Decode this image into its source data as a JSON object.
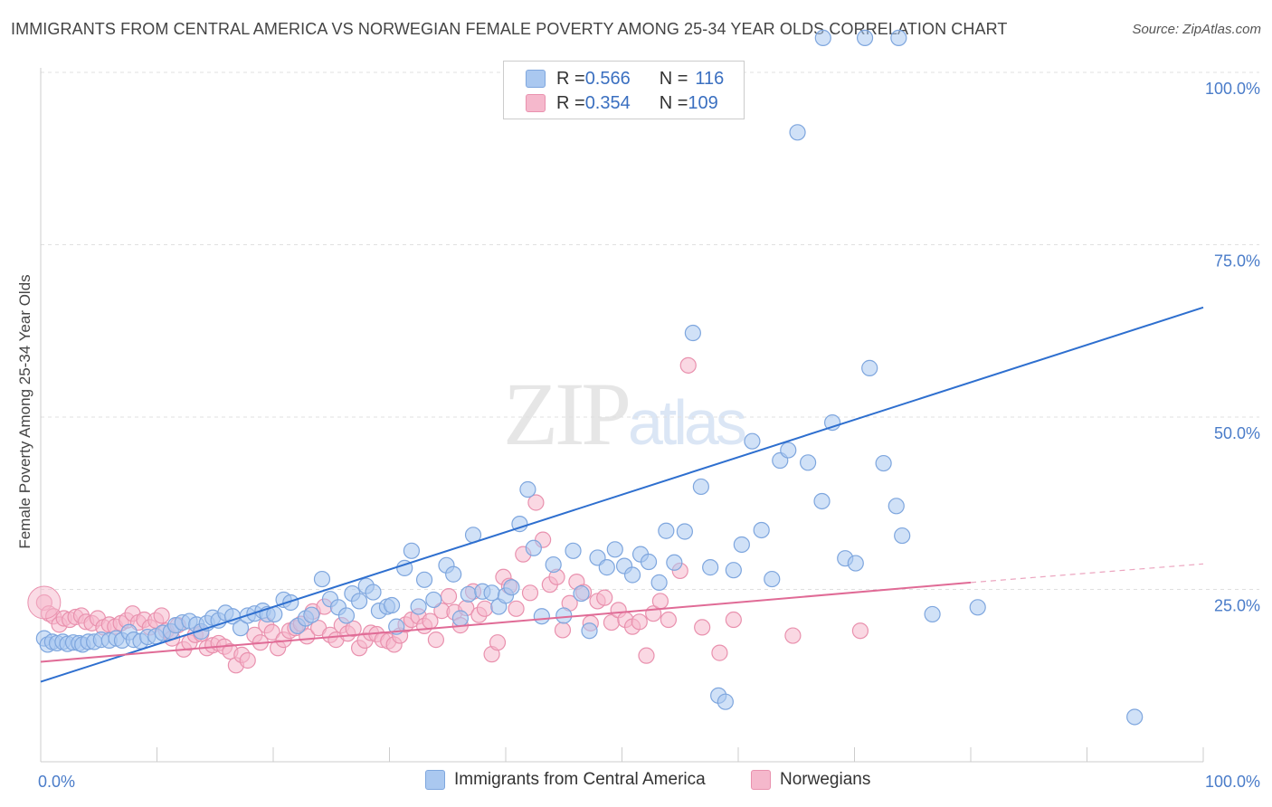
{
  "header": {
    "title": "IMMIGRANTS FROM CENTRAL AMERICA VS NORWEGIAN FEMALE POVERTY AMONG 25-34 YEAR OLDS CORRELATION CHART",
    "source": "Source: ZipAtlas.com"
  },
  "watermark": {
    "zip": "ZIP",
    "atlas": "atlas"
  },
  "legend": {
    "blue": {
      "r_label": "R = ",
      "r_value": "0.566",
      "n_label": "N = ",
      "n_value": "116"
    },
    "pink": {
      "r_label": "R = ",
      "r_value": "0.354",
      "n_label": "N = ",
      "n_value": "109"
    }
  },
  "colors": {
    "blue_fill": "#aac8f0",
    "blue_stroke": "#7ea6de",
    "blue_line": "#2e6fcf",
    "pink_fill": "#f5b8cc",
    "pink_stroke": "#e991ae",
    "pink_line": "#e06b96",
    "grid": "#e0e0e0",
    "tick_text": "#4a7cc9"
  },
  "chart_data": {
    "type": "scatter",
    "title": "IMMIGRANTS FROM CENTRAL AMERICA VS NORWEGIAN FEMALE POVERTY AMONG 25-34 YEAR OLDS CORRELATION CHART",
    "xlabel": "",
    "ylabel": "Female Poverty Among 25-34 Year Olds",
    "xlim": [
      0,
      100
    ],
    "ylim": [
      0,
      100
    ],
    "x_tick_labels": [
      "0.0%",
      "100.0%"
    ],
    "y_tick_labels": [
      "25.0%",
      "50.0%",
      "75.0%",
      "100.0%"
    ],
    "y_ticks": [
      25,
      50,
      75,
      100
    ],
    "grid": true,
    "legend_position": "top-center",
    "series": [
      {
        "name": "Immigrants from Central America",
        "color": "#aac8f0",
        "trend": {
          "x": [
            0,
            100
          ],
          "y": [
            11.6,
            65.9
          ]
        },
        "points": [
          [
            0.3,
            17.9
          ],
          [
            0.6,
            17.0
          ],
          [
            1.0,
            17.4
          ],
          [
            1.4,
            17.2
          ],
          [
            1.9,
            17.4
          ],
          [
            2.3,
            17.1
          ],
          [
            2.8,
            17.3
          ],
          [
            3.3,
            17.2
          ],
          [
            3.6,
            17.0
          ],
          [
            4.1,
            17.4
          ],
          [
            4.6,
            17.4
          ],
          [
            5.2,
            17.7
          ],
          [
            5.9,
            17.6
          ],
          [
            6.5,
            17.9
          ],
          [
            7.0,
            17.6
          ],
          [
            7.6,
            18.8
          ],
          [
            8.0,
            17.7
          ],
          [
            8.6,
            17.5
          ],
          [
            9.2,
            18.1
          ],
          [
            9.9,
            18.2
          ],
          [
            10.5,
            18.7
          ],
          [
            11.2,
            18.9
          ],
          [
            11.6,
            19.8
          ],
          [
            12.2,
            20.2
          ],
          [
            12.8,
            20.4
          ],
          [
            13.4,
            19.9
          ],
          [
            13.8,
            18.9
          ],
          [
            14.3,
            20.1
          ],
          [
            14.8,
            20.9
          ],
          [
            15.3,
            20.5
          ],
          [
            15.9,
            21.6
          ],
          [
            16.5,
            21.1
          ],
          [
            17.2,
            19.4
          ],
          [
            17.8,
            21.2
          ],
          [
            18.4,
            21.5
          ],
          [
            19.1,
            21.9
          ],
          [
            19.5,
            21.4
          ],
          [
            20.1,
            21.4
          ],
          [
            20.9,
            23.5
          ],
          [
            21.5,
            23.1
          ],
          [
            22.1,
            19.7
          ],
          [
            22.8,
            20.8
          ],
          [
            23.3,
            21.3
          ],
          [
            24.2,
            26.5
          ],
          [
            24.9,
            23.6
          ],
          [
            25.6,
            22.4
          ],
          [
            26.3,
            21.2
          ],
          [
            26.8,
            24.4
          ],
          [
            27.4,
            23.3
          ],
          [
            28.0,
            25.5
          ],
          [
            28.6,
            24.6
          ],
          [
            29.1,
            21.9
          ],
          [
            29.8,
            22.5
          ],
          [
            30.2,
            22.7
          ],
          [
            30.6,
            19.6
          ],
          [
            31.3,
            28.1
          ],
          [
            31.9,
            30.6
          ],
          [
            32.5,
            22.5
          ],
          [
            33.0,
            26.4
          ],
          [
            33.8,
            23.5
          ],
          [
            34.9,
            28.5
          ],
          [
            35.5,
            27.2
          ],
          [
            36.1,
            20.8
          ],
          [
            36.8,
            24.3
          ],
          [
            37.2,
            32.9
          ],
          [
            38.0,
            24.7
          ],
          [
            38.8,
            24.5
          ],
          [
            39.4,
            22.5
          ],
          [
            40.0,
            24.1
          ],
          [
            40.5,
            25.3
          ],
          [
            41.2,
            34.5
          ],
          [
            41.9,
            39.5
          ],
          [
            42.4,
            31.0
          ],
          [
            43.1,
            21.1
          ],
          [
            44.1,
            28.6
          ],
          [
            45.0,
            21.2
          ],
          [
            45.8,
            30.6
          ],
          [
            46.5,
            24.4
          ],
          [
            47.2,
            19.0
          ],
          [
            47.9,
            29.6
          ],
          [
            48.7,
            28.2
          ],
          [
            49.4,
            30.8
          ],
          [
            50.2,
            28.4
          ],
          [
            50.9,
            27.1
          ],
          [
            51.6,
            30.1
          ],
          [
            52.3,
            29.0
          ],
          [
            53.2,
            26.0
          ],
          [
            53.8,
            33.5
          ],
          [
            54.5,
            28.9
          ],
          [
            55.4,
            33.4
          ],
          [
            56.1,
            62.2
          ],
          [
            56.8,
            39.9
          ],
          [
            57.6,
            28.2
          ],
          [
            58.3,
            9.6
          ],
          [
            58.9,
            8.7
          ],
          [
            59.6,
            27.8
          ],
          [
            60.3,
            31.5
          ],
          [
            61.2,
            46.5
          ],
          [
            62.0,
            33.6
          ],
          [
            62.9,
            26.5
          ],
          [
            63.6,
            43.7
          ],
          [
            64.3,
            45.2
          ],
          [
            65.1,
            91.3
          ],
          [
            66.0,
            43.4
          ],
          [
            67.2,
            37.8
          ],
          [
            68.1,
            49.2
          ],
          [
            69.2,
            29.5
          ],
          [
            70.1,
            28.8
          ],
          [
            71.3,
            57.1
          ],
          [
            72.5,
            43.3
          ],
          [
            73.6,
            37.1
          ],
          [
            74.1,
            32.8
          ],
          [
            76.7,
            21.4
          ],
          [
            80.6,
            22.4
          ],
          [
            94.1,
            6.5
          ],
          [
            67.3,
            105.0
          ],
          [
            70.9,
            105.0
          ],
          [
            73.8,
            105.0
          ]
        ]
      },
      {
        "name": "Norwegians",
        "color": "#f5b8cc",
        "trend": {
          "x": [
            0,
            80
          ],
          "y": [
            14.5,
            26.0
          ]
        },
        "trend_dashed": {
          "x": [
            80,
            100
          ],
          "y": [
            26.0,
            28.7
          ]
        },
        "points": [
          [
            0.3,
            23.1
          ],
          [
            0.7,
            21.5
          ],
          [
            1.1,
            21.1
          ],
          [
            1.6,
            19.9
          ],
          [
            2.0,
            20.8
          ],
          [
            2.5,
            20.6
          ],
          [
            3.0,
            21.0
          ],
          [
            3.5,
            21.2
          ],
          [
            3.9,
            20.3
          ],
          [
            4.4,
            20.1
          ],
          [
            4.9,
            20.8
          ],
          [
            5.4,
            19.5
          ],
          [
            5.9,
            19.9
          ],
          [
            6.4,
            19.6
          ],
          [
            6.9,
            20.1
          ],
          [
            7.4,
            20.5
          ],
          [
            7.9,
            21.5
          ],
          [
            8.4,
            20.2
          ],
          [
            8.9,
            20.6
          ],
          [
            9.4,
            19.5
          ],
          [
            9.9,
            20.5
          ],
          [
            10.4,
            21.2
          ],
          [
            10.8,
            19.0
          ],
          [
            11.3,
            17.9
          ],
          [
            11.8,
            19.8
          ],
          [
            12.3,
            16.3
          ],
          [
            12.8,
            17.3
          ],
          [
            13.3,
            18.4
          ],
          [
            13.8,
            18.6
          ],
          [
            14.3,
            16.5
          ],
          [
            14.8,
            16.9
          ],
          [
            15.3,
            17.2
          ],
          [
            15.8,
            16.7
          ],
          [
            16.3,
            16.0
          ],
          [
            16.8,
            14.0
          ],
          [
            17.3,
            15.5
          ],
          [
            17.8,
            14.7
          ],
          [
            18.4,
            18.4
          ],
          [
            18.9,
            17.3
          ],
          [
            19.4,
            19.8
          ],
          [
            19.9,
            18.8
          ],
          [
            20.4,
            16.5
          ],
          [
            20.9,
            17.7
          ],
          [
            21.4,
            19.0
          ],
          [
            21.9,
            19.4
          ],
          [
            22.4,
            20.0
          ],
          [
            22.9,
            18.2
          ],
          [
            23.4,
            21.8
          ],
          [
            23.9,
            19.4
          ],
          [
            24.4,
            22.5
          ],
          [
            24.9,
            18.4
          ],
          [
            25.4,
            17.7
          ],
          [
            25.9,
            19.8
          ],
          [
            26.4,
            18.6
          ],
          [
            26.9,
            19.3
          ],
          [
            27.4,
            16.5
          ],
          [
            27.9,
            17.6
          ],
          [
            28.4,
            18.7
          ],
          [
            28.9,
            18.5
          ],
          [
            29.4,
            17.7
          ],
          [
            29.9,
            17.5
          ],
          [
            30.4,
            17.0
          ],
          [
            30.9,
            18.3
          ],
          [
            31.4,
            19.9
          ],
          [
            31.9,
            20.6
          ],
          [
            32.5,
            21.1
          ],
          [
            33.0,
            19.7
          ],
          [
            33.5,
            20.4
          ],
          [
            34.0,
            17.7
          ],
          [
            34.5,
            21.9
          ],
          [
            35.1,
            24.0
          ],
          [
            35.6,
            21.7
          ],
          [
            36.1,
            19.8
          ],
          [
            36.6,
            22.3
          ],
          [
            37.2,
            24.7
          ],
          [
            37.7,
            21.3
          ],
          [
            38.2,
            22.2
          ],
          [
            38.8,
            15.6
          ],
          [
            39.3,
            17.3
          ],
          [
            39.8,
            26.8
          ],
          [
            40.3,
            25.5
          ],
          [
            40.9,
            22.2
          ],
          [
            41.5,
            30.1
          ],
          [
            42.1,
            24.5
          ],
          [
            42.6,
            37.6
          ],
          [
            43.2,
            32.2
          ],
          [
            43.8,
            25.7
          ],
          [
            44.4,
            26.8
          ],
          [
            44.9,
            19.1
          ],
          [
            45.5,
            23.0
          ],
          [
            46.1,
            26.1
          ],
          [
            46.7,
            24.6
          ],
          [
            47.3,
            20.1
          ],
          [
            47.9,
            23.3
          ],
          [
            48.5,
            23.8
          ],
          [
            49.1,
            20.2
          ],
          [
            49.7,
            22.0
          ],
          [
            50.3,
            20.6
          ],
          [
            50.9,
            19.6
          ],
          [
            51.5,
            20.3
          ],
          [
            52.1,
            15.4
          ],
          [
            52.7,
            21.5
          ],
          [
            53.3,
            23.3
          ],
          [
            54.0,
            20.6
          ],
          [
            55.0,
            27.7
          ],
          [
            55.7,
            57.5
          ],
          [
            56.9,
            19.5
          ],
          [
            58.4,
            15.8
          ],
          [
            59.6,
            20.6
          ],
          [
            64.7,
            18.3
          ],
          [
            70.5,
            19.0
          ]
        ]
      }
    ]
  },
  "bottom_legend": {
    "blue_label": "Immigrants from Central America",
    "pink_label": "Norwegians"
  }
}
